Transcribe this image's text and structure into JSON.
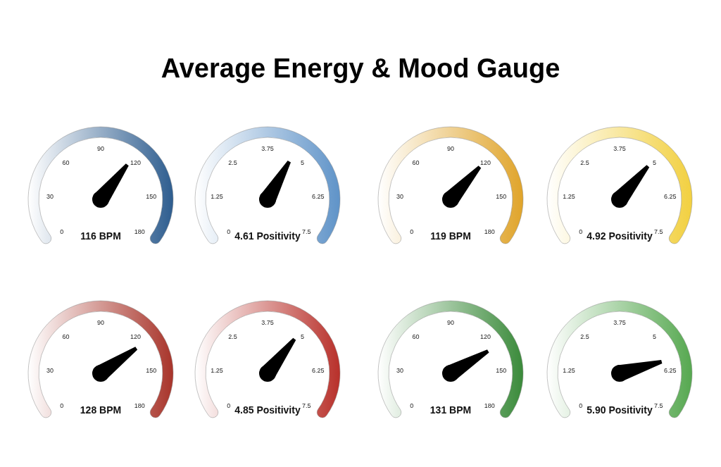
{
  "chart_data": [
    {
      "type": "other",
      "title": "Average Energy & Mood Gauge",
      "values": [
        116
      ],
      "value_labels": [
        "116 BPM"
      ],
      "annotations": [
        "0",
        "30",
        "60",
        "90",
        "120",
        "150",
        "180"
      ],
      "color": "#2e5d8f"
    },
    {
      "type": "other",
      "values": [
        4.61
      ],
      "value_labels": [
        "4.61 Positivity"
      ],
      "annotations": [
        "0",
        "1.25",
        "2.5",
        "3.75",
        "5",
        "6.25",
        "7.5"
      ],
      "color": "#5f93c8"
    },
    {
      "type": "other",
      "values": [
        119
      ],
      "value_labels": [
        "119 BPM"
      ],
      "annotations": [
        "0",
        "30",
        "60",
        "90",
        "120",
        "150",
        "180"
      ],
      "color": "#e0a42a"
    },
    {
      "type": "other",
      "values": [
        4.92
      ],
      "value_labels": [
        "4.92 Positivity"
      ],
      "annotations": [
        "0",
        "1.25",
        "2.5",
        "3.75",
        "5",
        "6.25",
        "7.5"
      ],
      "color": "#f2d040"
    },
    {
      "type": "other",
      "values": [
        128
      ],
      "value_labels": [
        "128 BPM"
      ],
      "annotations": [
        "0",
        "30",
        "60",
        "90",
        "120",
        "150",
        "180"
      ],
      "color": "#a8342a"
    },
    {
      "type": "other",
      "values": [
        4.85
      ],
      "value_labels": [
        "4.85 Positivity"
      ],
      "annotations": [
        "0",
        "1.25",
        "2.5",
        "3.75",
        "5",
        "6.25",
        "7.5"
      ],
      "color": "#b8302a"
    },
    {
      "type": "other",
      "values": [
        131
      ],
      "value_labels": [
        "131 BPM"
      ],
      "annotations": [
        "0",
        "30",
        "60",
        "90",
        "120",
        "150",
        "180"
      ],
      "color": "#3a8a3a"
    },
    {
      "type": "other",
      "values": [
        5.9
      ],
      "value_labels": [
        "5.90 Positivity"
      ],
      "annotations": [
        "0",
        "1.25",
        "2.5",
        "3.75",
        "5",
        "6.25",
        "7.5"
      ],
      "color": "#56a850"
    }
  ]
}
